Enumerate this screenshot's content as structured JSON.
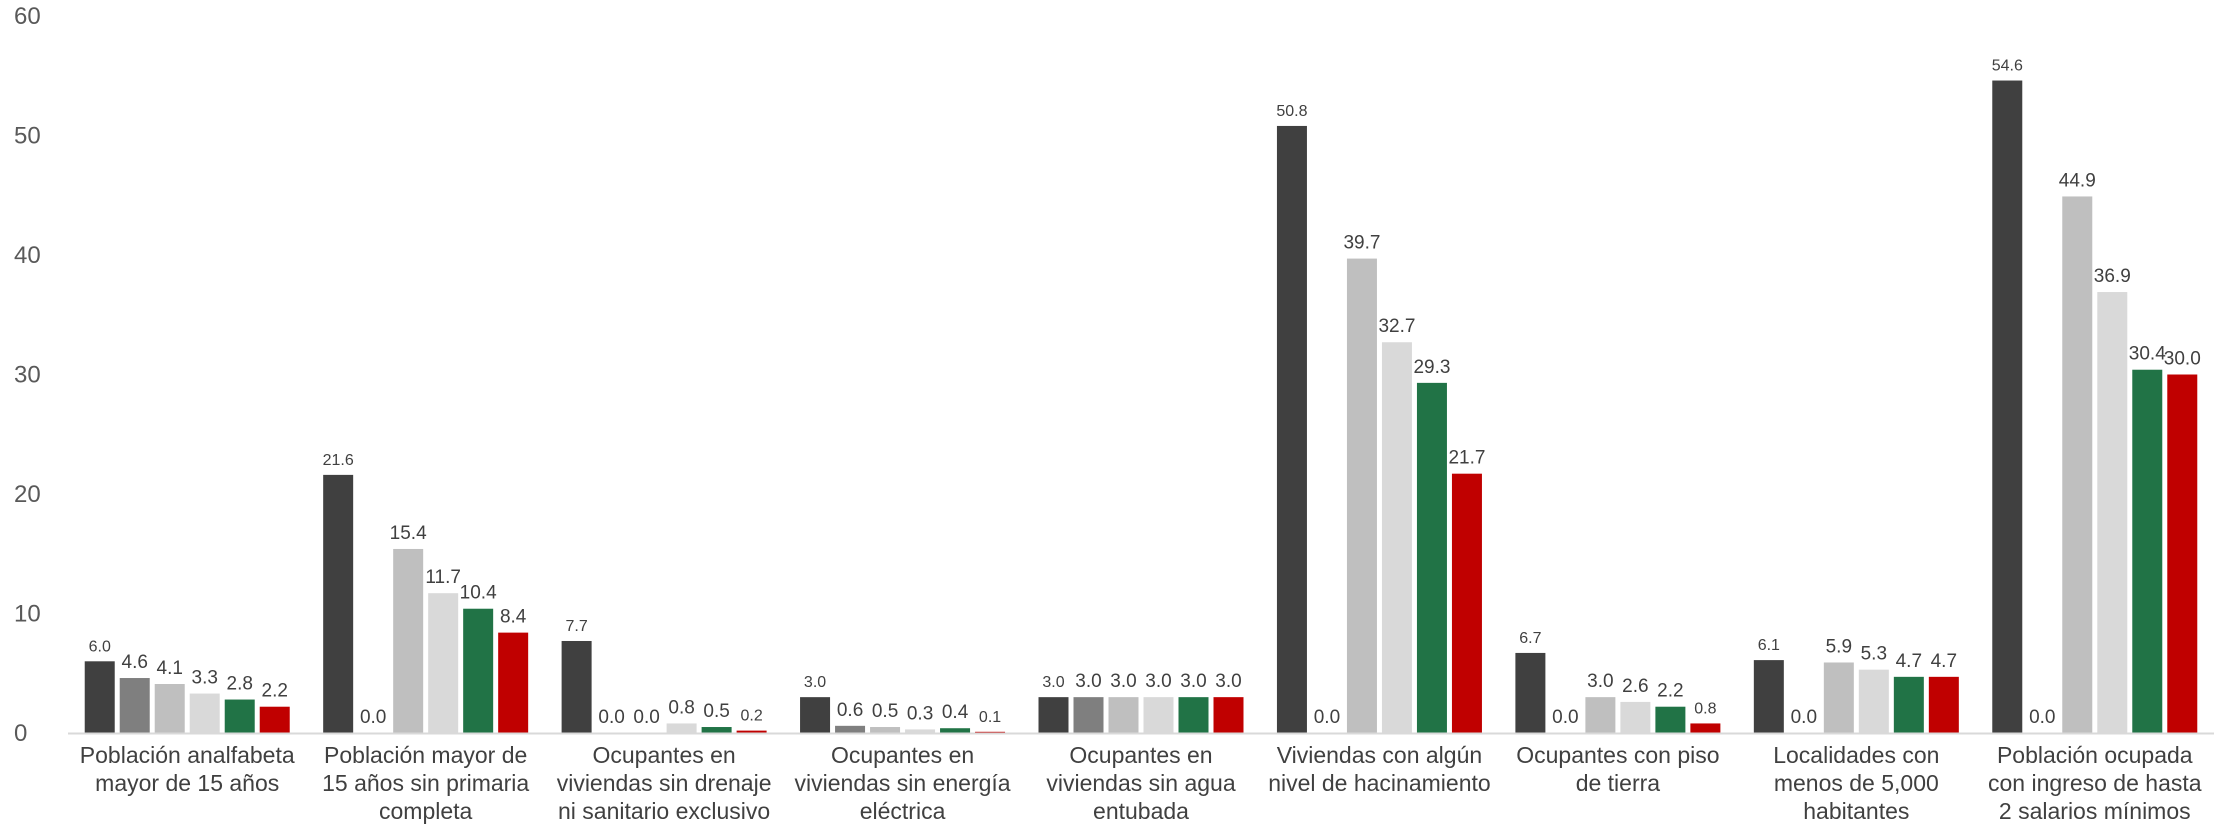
{
  "chart_data": {
    "type": "bar",
    "title": "",
    "xlabel": "",
    "ylabel": "",
    "ylim": [
      0,
      60
    ],
    "yticks": [
      "0",
      "10",
      "20",
      "30",
      "40",
      "50",
      "60"
    ],
    "grid": false,
    "categories": [
      [
        "Población analfabeta",
        "mayor de 15 años"
      ],
      [
        "Población mayor de",
        "15 años sin primaria",
        "completa"
      ],
      [
        "Ocupantes en",
        "viviendas sin drenaje",
        "ni sanitario exclusivo"
      ],
      [
        "Ocupantes en",
        "viviendas sin energía",
        "eléctrica"
      ],
      [
        "Ocupantes en",
        "viviendas sin agua",
        "entubada"
      ],
      [
        "Viviendas con algún",
        "nivel de hacinamiento"
      ],
      [
        "Ocupantes con piso",
        "de tierra"
      ],
      [
        "Localidades con",
        "menos de 5,000",
        "habitantes"
      ],
      [
        "Población ocupada",
        "con ingreso de hasta",
        "2 salarios mínimos"
      ]
    ],
    "series": [
      {
        "color": "#404040",
        "values": [
          6.0,
          21.6,
          7.7,
          3.0,
          3.0,
          50.8,
          6.7,
          6.1,
          54.6
        ],
        "labels": [
          "6.0",
          "21.6",
          "7.7",
          "3.0",
          "3.0",
          "50.8",
          "6.7",
          "6.1",
          "54.6"
        ]
      },
      {
        "color": "#7f7f7f",
        "values": [
          4.6,
          0.0,
          0.0,
          0.6,
          3.0,
          0.0,
          0.0,
          0.0,
          0.0
        ],
        "labels": [
          "4.6",
          "0.0",
          "0.0",
          "0.6",
          "3.0",
          "0.0",
          "0.0",
          "0.0",
          "0.0"
        ]
      },
      {
        "color": "#bfbfbf",
        "values": [
          4.1,
          15.4,
          0.0,
          0.5,
          3.0,
          39.7,
          3.0,
          5.9,
          44.9
        ],
        "labels": [
          "4.1",
          "15.4",
          "0.0",
          "0.5",
          "3.0",
          "39.7",
          "3.0",
          "5.9",
          "44.9"
        ]
      },
      {
        "color": "#d9d9d9",
        "values": [
          3.3,
          11.7,
          0.8,
          0.3,
          3.0,
          32.7,
          2.6,
          5.3,
          36.9
        ],
        "labels": [
          "3.3",
          "11.7",
          "0.8",
          "0.3",
          "3.0",
          "32.7",
          "2.6",
          "5.3",
          "36.9"
        ]
      },
      {
        "color": "#217346",
        "values": [
          2.8,
          10.4,
          0.5,
          0.4,
          3.0,
          29.3,
          2.2,
          4.7,
          30.4
        ],
        "labels": [
          "2.8",
          "10.4",
          "0.5",
          "0.4",
          "3.0",
          "29.3",
          "2.2",
          "4.7",
          "30.4"
        ]
      },
      {
        "color": "#c00000",
        "values": [
          2.2,
          8.4,
          0.2,
          0.1,
          3.0,
          21.7,
          0.8,
          4.7,
          30.0
        ],
        "labels": [
          "2.2",
          "8.4",
          "0.2",
          "0.1",
          "3.0",
          "21.7",
          "0.8",
          "4.7",
          "30.0"
        ]
      }
    ]
  }
}
